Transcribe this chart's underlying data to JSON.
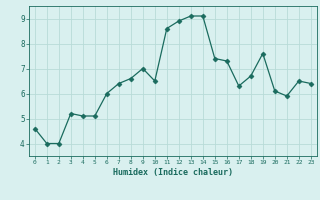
{
  "x": [
    0,
    1,
    2,
    3,
    4,
    5,
    6,
    7,
    8,
    9,
    10,
    11,
    12,
    13,
    14,
    15,
    16,
    17,
    18,
    19,
    20,
    21,
    22,
    23
  ],
  "y": [
    4.6,
    4.0,
    4.0,
    5.2,
    5.1,
    5.1,
    6.0,
    6.4,
    6.6,
    7.0,
    6.5,
    8.6,
    8.9,
    9.1,
    9.1,
    7.4,
    7.3,
    6.3,
    6.7,
    7.6,
    6.1,
    5.9,
    6.5,
    6.4
  ],
  "line_color": "#1a6b5e",
  "marker": "D",
  "marker_size": 2.5,
  "bg_color": "#d9f0ef",
  "grid_color": "#b8dbd8",
  "xlabel": "Humidex (Indice chaleur)",
  "ylim": [
    3.5,
    9.5
  ],
  "xlim": [
    -0.5,
    23.5
  ],
  "yticks": [
    4,
    5,
    6,
    7,
    8,
    9
  ],
  "xticks": [
    0,
    1,
    2,
    3,
    4,
    5,
    6,
    7,
    8,
    9,
    10,
    11,
    12,
    13,
    14,
    15,
    16,
    17,
    18,
    19,
    20,
    21,
    22,
    23
  ],
  "label_color": "#1a6b5e",
  "tick_color": "#1a6b5e"
}
